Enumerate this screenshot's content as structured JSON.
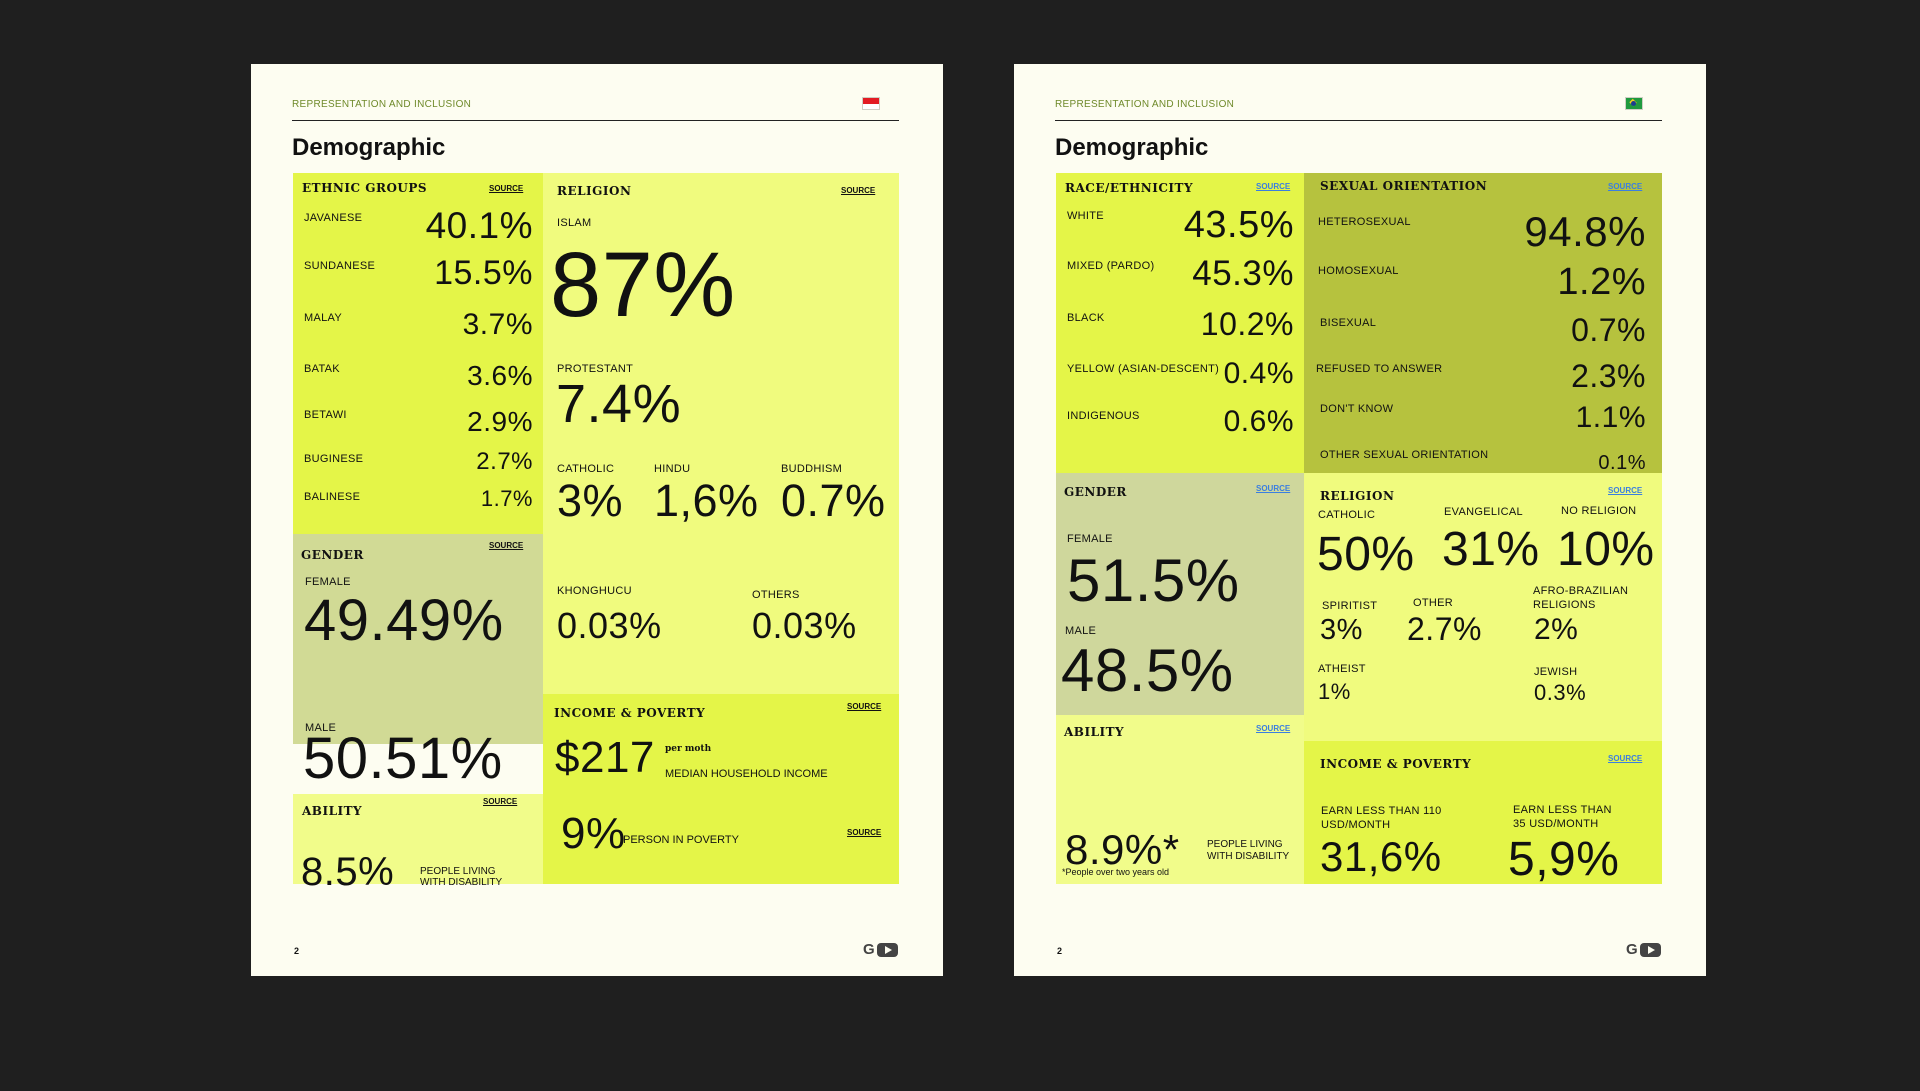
{
  "colors": {
    "bg": "#1f1f1f",
    "page": "#fdfdf1",
    "lime_a": "#e4f548",
    "lime_b": "#f0fb7e",
    "lime_c": "#f1fc8a",
    "olive": "#b6c23e",
    "sage": "#d1da95",
    "muted_sage": "#cfd79c",
    "accent_green": "#6f8a2a",
    "source_blue": "#3b7fe0"
  },
  "icons": {
    "flag_a": "indonesia-flag-icon",
    "flag_b": "brazil-flag-icon",
    "logo_g": "google-g-icon",
    "logo_yt": "youtube-icon"
  },
  "common": {
    "header": "REPRESENTATION AND INCLUSION",
    "title": "Demographic",
    "page_number": "2",
    "source": "SOURCE",
    "logo_g": "G"
  },
  "a": {
    "ethnic": {
      "title": "ETHNIC GROUPS",
      "items": [
        {
          "label": "JAVANESE",
          "value": "40.1%"
        },
        {
          "label": "SUNDANESE",
          "value": "15.5%"
        },
        {
          "label": "MALAY",
          "value": "3.7%"
        },
        {
          "label": "BATAK",
          "value": "3.6%"
        },
        {
          "label": "BETAWI",
          "value": "2.9%"
        },
        {
          "label": "BUGINESE",
          "value": "2.7%"
        },
        {
          "label": "BALINESE",
          "value": "1.7%"
        }
      ]
    },
    "religion": {
      "title": "RELIGION",
      "islam_label": "ISLAM",
      "islam_value": "87%",
      "protestant_label": "PROTESTANT",
      "protestant_value": "7.4%",
      "catholic_label": "CATHOLIC",
      "catholic_value": "3%",
      "hindu_label": "HINDU",
      "hindu_value": "1,6%",
      "buddhism_label": "BUDDHISM",
      "buddhism_value": "0.7%",
      "khonghucu_label": "KHONGHUCU",
      "khonghucu_value": "0.03%",
      "others_label": "OTHERS",
      "others_value": "0.03%"
    },
    "gender": {
      "title": "GENDER",
      "female_label": "FEMALE",
      "female_value": "49.49%",
      "male_label": "MALE",
      "male_value": "50.51%"
    },
    "ability": {
      "title": "ABILITY",
      "value": "8.5%",
      "desc1": "PEOPLE LIVING",
      "desc2": "WITH DISABILITY"
    },
    "income": {
      "title": "INCOME & POVERTY",
      "income_value": "$217",
      "per_month": "per moth",
      "income_desc": "MEDIAN HOUSEHOLD INCOME",
      "poverty_value": "9%",
      "poverty_desc": "PERSON IN POVERTY"
    }
  },
  "b": {
    "race": {
      "title": "RACE/ETHNICITY",
      "items": [
        {
          "label": "WHITE",
          "value": "43.5%"
        },
        {
          "label": "MIXED (PARDO)",
          "value": "45.3%"
        },
        {
          "label": "BLACK",
          "value": "10.2%"
        },
        {
          "label": "YELLOW (ASIAN-DESCENT)",
          "value": "0.4%"
        },
        {
          "label": "INDIGENOUS",
          "value": "0.6%"
        }
      ]
    },
    "sexual": {
      "title": "SEXUAL ORIENTATION",
      "items": [
        {
          "label": "HETEROSEXUAL",
          "value": "94.8%"
        },
        {
          "label": "HOMOSEXUAL",
          "value": "1.2%"
        },
        {
          "label": "BISEXUAL",
          "value": "0.7%"
        },
        {
          "label": "REFUSED TO ANSWER",
          "value": "2.3%"
        },
        {
          "label": "DON'T KNOW",
          "value": "1.1%"
        },
        {
          "label": "OTHER SEXUAL ORIENTATION",
          "value": "0.1%"
        }
      ]
    },
    "gender": {
      "title": "GENDER",
      "female_label": "FEMALE",
      "female_value": "51.5%",
      "male_label": "MALE",
      "male_value": "48.5%"
    },
    "religion": {
      "title": "RELIGION",
      "catholic_label": "CATHOLIC",
      "catholic_value": "50%",
      "evangelical_label": "EVANGELICAL",
      "evangelical_value": "31%",
      "norel_label": "NO RELIGION",
      "norel_value": "10%",
      "spiritist_label": "SPIRITIST",
      "spiritist_value": "3%",
      "other_label": "OTHER",
      "other_value": "2.7%",
      "afro_label1": "AFRO-BRAZILIAN",
      "afro_label2": "RELIGIONS",
      "afro_value": "2%",
      "atheist_label": "ATHEIST",
      "atheist_value": "1%",
      "jewish_label": "JEWISH",
      "jewish_value": "0.3%"
    },
    "ability": {
      "title": "ABILITY",
      "value": "8.9%*",
      "desc1": "PEOPLE LIVING",
      "desc2": "WITH DISABILITY",
      "note": "*People over two years old"
    },
    "income": {
      "title": "INCOME & POVERTY",
      "e110_label1": "EARN LESS THAN 110",
      "e110_label2": "USD/MONTH",
      "e110_value": "31,6%",
      "e35_label1": "EARN LESS THAN",
      "e35_label2": "35 USD/MONTH",
      "e35_value": "5,9%"
    }
  }
}
